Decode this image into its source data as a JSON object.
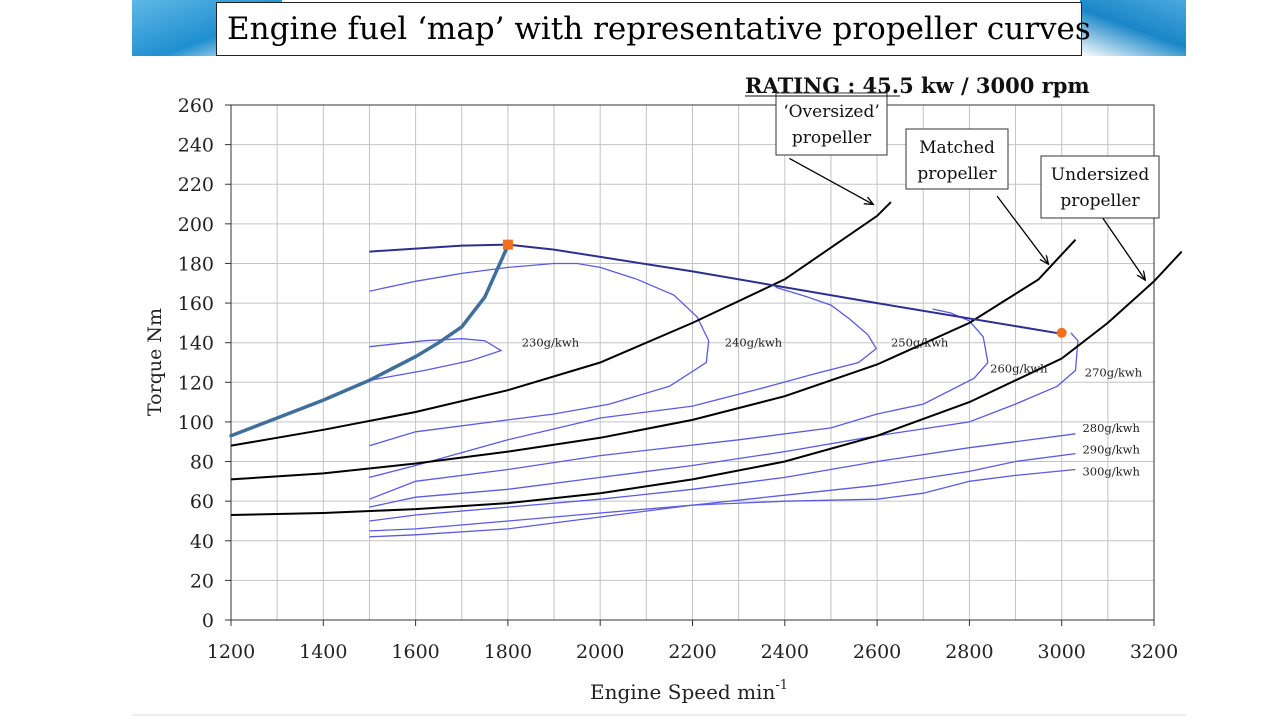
{
  "slide": {
    "title": "Engine fuel ‘map’ with representative propeller curves",
    "colors": {
      "banner": "#1f8fd0",
      "contour": "#5a5ae6",
      "power_curve": "#2b2f8f",
      "propeller_curve": "#000000",
      "operating_curve": "#3f6f9a",
      "marker": "#f07020"
    }
  },
  "chart_data": {
    "type": "line",
    "rating": "RATING : 45.5 kw / 3000 rpm",
    "xlabel": "Engine Speed  min",
    "xlabel_sup": "-1",
    "ylabel": "Torque  Nm",
    "xlim": [
      1200,
      3200
    ],
    "ylim": [
      0,
      260
    ],
    "x_ticks": [
      1200,
      1400,
      1600,
      1800,
      2000,
      2200,
      2400,
      2600,
      2800,
      3000,
      3200
    ],
    "y_ticks": [
      0,
      20,
      40,
      60,
      80,
      100,
      120,
      140,
      160,
      180,
      200,
      220,
      240,
      260
    ],
    "grid": true,
    "max_torque_line": {
      "name": "Max torque",
      "points": [
        [
          1500,
          186
        ],
        [
          1700,
          189
        ],
        [
          1800,
          189.5
        ],
        [
          1900,
          187
        ],
        [
          2200,
          176
        ],
        [
          2600,
          160
        ],
        [
          3000,
          144.5
        ]
      ]
    },
    "markers": [
      {
        "x": 1800,
        "y": 189.5
      },
      {
        "x": 3000,
        "y": 145
      }
    ],
    "operating_curve": {
      "points": [
        [
          1200,
          93
        ],
        [
          1300,
          102
        ],
        [
          1400,
          111
        ],
        [
          1500,
          121
        ],
        [
          1600,
          133
        ],
        [
          1650,
          140
        ],
        [
          1700,
          148
        ],
        [
          1750,
          163
        ],
        [
          1800,
          189
        ]
      ]
    },
    "propeller_curves": [
      {
        "name": "Oversized propeller",
        "label_line1": "‘Oversized’",
        "label_line2": "propeller",
        "points": [
          [
            1200,
            88
          ],
          [
            1400,
            96
          ],
          [
            1600,
            105
          ],
          [
            1800,
            116
          ],
          [
            2000,
            130
          ],
          [
            2200,
            150
          ],
          [
            2400,
            172
          ],
          [
            2600,
            204
          ],
          [
            2630,
            211
          ]
        ],
        "arrow_from": [
          2410,
          233
        ],
        "arrow_to": [
          2590,
          210
        ]
      },
      {
        "name": "Matched propeller",
        "label_line1": "Matched",
        "label_line2": "propeller",
        "points": [
          [
            1200,
            71
          ],
          [
            1400,
            74
          ],
          [
            1600,
            79
          ],
          [
            1800,
            85
          ],
          [
            2000,
            92
          ],
          [
            2200,
            101
          ],
          [
            2400,
            113
          ],
          [
            2600,
            129
          ],
          [
            2800,
            150
          ],
          [
            2950,
            172
          ],
          [
            3030,
            192
          ]
        ],
        "arrow_from": [
          2860,
          214
        ],
        "arrow_to": [
          2970,
          180
        ]
      },
      {
        "name": "Undersized propeller",
        "label_line1": "Undersized",
        "label_line2": "propeller",
        "points": [
          [
            1200,
            53
          ],
          [
            1400,
            54
          ],
          [
            1600,
            56
          ],
          [
            1800,
            59
          ],
          [
            2000,
            64
          ],
          [
            2200,
            71
          ],
          [
            2400,
            80
          ],
          [
            2600,
            93
          ],
          [
            2800,
            110
          ],
          [
            3000,
            132
          ],
          [
            3100,
            150
          ],
          [
            3200,
            171
          ],
          [
            3260,
            186
          ]
        ],
        "arrow_from": [
          3080,
          206
        ],
        "arrow_to": [
          3180,
          172
        ]
      }
    ],
    "bsfc_contours": [
      {
        "label": "230g/kwh",
        "label_x": 1830,
        "label_y": 138,
        "points": [
          [
            1500,
            138
          ],
          [
            1560,
            139.5
          ],
          [
            1620,
            141
          ],
          [
            1700,
            142
          ],
          [
            1750,
            141
          ],
          [
            1785,
            136
          ],
          [
            1720,
            131
          ],
          [
            1620,
            126
          ],
          [
            1500,
            121
          ]
        ]
      },
      {
        "label": "240g/kwh",
        "label_x": 2270,
        "label_y": 138,
        "points": [
          [
            1500,
            166
          ],
          [
            1600,
            171
          ],
          [
            1700,
            175
          ],
          [
            1800,
            178
          ],
          [
            1900,
            180
          ],
          [
            1950,
            180
          ],
          [
            2000,
            178
          ],
          [
            2080,
            172
          ],
          [
            2160,
            164
          ],
          [
            2210,
            153
          ],
          [
            2235,
            141
          ],
          [
            2230,
            130
          ],
          [
            2150,
            118
          ],
          [
            2020,
            109
          ],
          [
            1900,
            104
          ],
          [
            1800,
            101
          ],
          [
            1600,
            95
          ],
          [
            1500,
            88
          ]
        ]
      },
      {
        "label": "250g/kwh",
        "label_x": 2630,
        "label_y": 138,
        "points": [
          [
            2380,
            168
          ],
          [
            2450,
            163
          ],
          [
            2500,
            159
          ],
          [
            2540,
            152
          ],
          [
            2580,
            144
          ],
          [
            2598,
            137
          ],
          [
            2560,
            130
          ],
          [
            2460,
            124
          ],
          [
            2350,
            117
          ],
          [
            2200,
            108
          ],
          [
            2000,
            102
          ],
          [
            1800,
            91
          ],
          [
            1600,
            78
          ],
          [
            1500,
            72
          ]
        ]
      },
      {
        "label": "260g/kwh",
        "label_x": 2845,
        "label_y": 125,
        "points": [
          [
            2720,
            157
          ],
          [
            2760,
            155
          ],
          [
            2800,
            151
          ],
          [
            2830,
            143
          ],
          [
            2840,
            130
          ],
          [
            2810,
            122
          ],
          [
            2700,
            109
          ],
          [
            2600,
            104
          ],
          [
            2500,
            97
          ],
          [
            2300,
            91
          ],
          [
            2000,
            83
          ],
          [
            1800,
            76
          ],
          [
            1600,
            70
          ],
          [
            1500,
            61
          ]
        ]
      },
      {
        "label": "270g/kwh",
        "label_x": 3050,
        "label_y": 123,
        "points": [
          [
            3020,
            145
          ],
          [
            3035,
            141
          ],
          [
            3030,
            126
          ],
          [
            2990,
            118
          ],
          [
            2900,
            109
          ],
          [
            2800,
            100
          ],
          [
            2600,
            93
          ],
          [
            2400,
            85
          ],
          [
            2200,
            78
          ],
          [
            2000,
            72
          ],
          [
            1800,
            66
          ],
          [
            1600,
            62
          ],
          [
            1500,
            57
          ]
        ]
      },
      {
        "label": "280g/kwh",
        "label_x": 3045,
        "label_y": 95,
        "points": [
          [
            3030,
            94
          ],
          [
            2900,
            90
          ],
          [
            2800,
            87
          ],
          [
            2600,
            80
          ],
          [
            2400,
            72
          ],
          [
            2200,
            66
          ],
          [
            2000,
            61
          ],
          [
            1800,
            57
          ],
          [
            1600,
            53
          ],
          [
            1500,
            50
          ]
        ]
      },
      {
        "label": "290g/kwh",
        "label_x": 3045,
        "label_y": 84,
        "points": [
          [
            3030,
            84
          ],
          [
            2900,
            80
          ],
          [
            2800,
            75
          ],
          [
            2600,
            68
          ],
          [
            2400,
            63
          ],
          [
            2200,
            58
          ],
          [
            2000,
            54
          ],
          [
            1800,
            50
          ],
          [
            1600,
            46
          ],
          [
            1500,
            45
          ]
        ]
      },
      {
        "label": "300g/kwh",
        "label_x": 3045,
        "label_y": 73,
        "points": [
          [
            3030,
            76
          ],
          [
            2900,
            73
          ],
          [
            2800,
            70
          ],
          [
            2700,
            64
          ],
          [
            2600,
            61
          ],
          [
            2400,
            60
          ],
          [
            2200,
            58
          ],
          [
            2000,
            52
          ],
          [
            1800,
            46
          ],
          [
            1600,
            43
          ],
          [
            1500,
            42
          ]
        ]
      }
    ]
  }
}
